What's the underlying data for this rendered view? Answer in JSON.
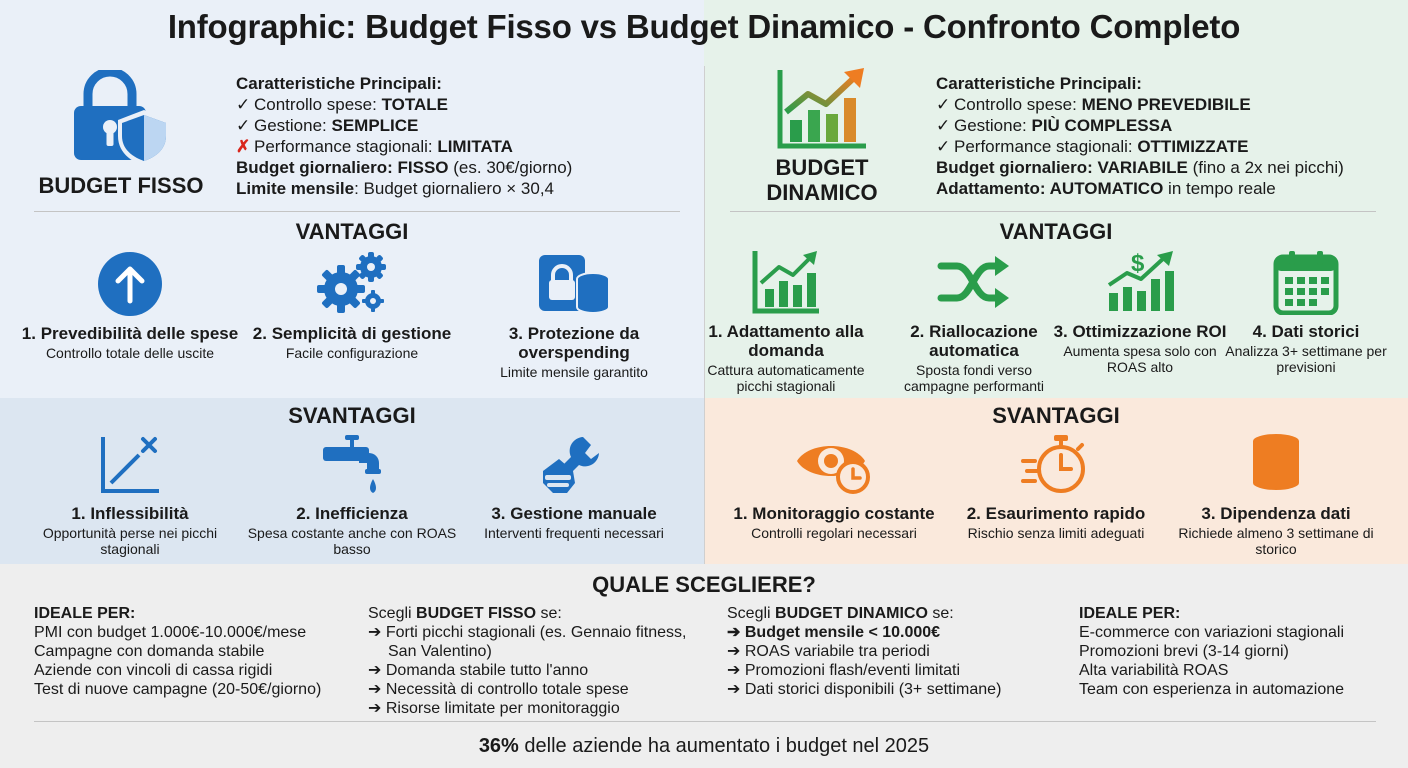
{
  "title": "Infographic: Budget Fisso vs Budget Dinamico - Confronto Completo",
  "colors": {
    "blue": "#1f6fc0",
    "green": "#2a9d4b",
    "orange": "#ee7d22",
    "red": "#d9261c"
  },
  "fisso": {
    "label": "BUDGET FISSO",
    "icon": "lock-shield-icon",
    "features_head": "Caratteristiche Principali:",
    "features": [
      {
        "mark": "✓",
        "label": "Controllo spese: ",
        "value": "TOTALE"
      },
      {
        "mark": "✓",
        "label": "Gestione: ",
        "value": "SEMPLICE"
      },
      {
        "mark": "✗",
        "label": "Performance stagionali: ",
        "value": "LIMITATA"
      }
    ],
    "daily_label": "Budget giornaliero",
    "daily_value": ": FISSO",
    "daily_note": " (es. 30€/giorno)",
    "monthly_label": "Limite mensile",
    "monthly_value": ": Budget giornaliero × 30,4",
    "vantaggi_title": "VANTAGGI",
    "vantaggi": [
      {
        "icon": "arrow-up-circle-icon",
        "title": "1. Prevedibilità delle spese",
        "desc": "Controllo totale delle uscite"
      },
      {
        "icon": "gears-icon",
        "title": "2. Semplicità di gestione",
        "desc": "Facile configurazione"
      },
      {
        "icon": "lock-database-icon",
        "title": "3. Protezione da overspending",
        "desc": "Limite mensile garantito"
      }
    ],
    "svantaggi_title": "SVANTAGGI",
    "svantaggi": [
      {
        "icon": "chart-x-icon",
        "title": "1. Inflessibilità",
        "desc": "Opportunità perse nei picchi stagionali"
      },
      {
        "icon": "faucet-icon",
        "title": "2. Inefficienza",
        "desc": "Spesa costante anche con ROAS basso"
      },
      {
        "icon": "hand-wrench-icon",
        "title": "3. Gestione manuale",
        "desc": "Interventi frequenti necessari"
      }
    ]
  },
  "dinamico": {
    "label_line1": "BUDGET",
    "label_line2": "DINAMICO",
    "icon": "growth-chart-icon",
    "features_head": "Caratteristiche Principali:",
    "features": [
      {
        "mark": "✓",
        "label": "Controllo spese: ",
        "value": "MENO PREVEDIBILE"
      },
      {
        "mark": "✓",
        "label": "Gestione: ",
        "value": "PIÙ COMPLESSA"
      },
      {
        "mark": "✓",
        "label": "Performance stagionali: ",
        "value": "OTTIMIZZATE"
      }
    ],
    "daily_label": "Budget giornaliero",
    "daily_value": ": VARIABILE",
    "daily_note": " (fino a 2x nei picchi)",
    "adapt_label": "Adattamento",
    "adapt_value": ": AUTOMATICO",
    "adapt_note": " in tempo reale",
    "vantaggi_title": "VANTAGGI",
    "vantaggi": [
      {
        "icon": "bar-growth-icon",
        "title": "1. Adattamento alla domanda",
        "desc": "Cattura automaticamente picchi stagionali"
      },
      {
        "icon": "shuffle-icon",
        "title": "2. Riallocazione automatica",
        "desc": "Sposta fondi verso campagne performanti"
      },
      {
        "icon": "dollar-growth-icon",
        "title": "3. Ottimizzazione ROI",
        "desc": "Aumenta spesa solo con ROAS alto"
      },
      {
        "icon": "calendar-icon",
        "title": "4. Dati storici",
        "desc": "Analizza 3+ settimane per previsioni"
      }
    ],
    "svantaggi_title": "SVANTAGGI",
    "svantaggi": [
      {
        "icon": "eye-clock-icon",
        "title": "1. Monitoraggio costante",
        "desc": "Controlli regolari necessari"
      },
      {
        "icon": "stopwatch-icon",
        "title": "2. Esaurimento rapido",
        "desc": "Rischio senza limiti adeguati"
      },
      {
        "icon": "database-icon",
        "title": "3. Dipendenza dati",
        "desc": "Richiede almeno 3 settimane di storico"
      }
    ]
  },
  "choose": {
    "title": "QUALE SCEGLIERE?",
    "ideal_fisso_head": "IDEALE PER:",
    "ideal_fisso": [
      "PMI con budget 1.000€-10.000€/mese",
      "Campagne con domanda stabile",
      "Aziende con vincoli di cassa rigidi",
      "Test di nuove campagne (20-50€/giorno)"
    ],
    "scegli_fisso_pre": "Scegli ",
    "scegli_fisso_bold": "BUDGET FISSO",
    "scegli_fisso_post": " se:",
    "scegli_fisso": [
      "Forti picchi stagionali (es. Gennaio fitness, San Valentino)",
      "Domanda stabile tutto l'anno",
      "Necessità di controllo totale spese",
      "Risorse limitate per monitoraggio"
    ],
    "scegli_dinamico_pre": "Scegli ",
    "scegli_dinamico_bold": "BUDGET DINAMICO",
    "scegli_dinamico_post": " se:",
    "scegli_dinamico": [
      "Budget mensile < 10.000€",
      "ROAS variabile tra periodi",
      "Promozioni flash/eventi limitati",
      "Dati storici disponibili (3+ settimane)"
    ],
    "ideal_dinamico_head": "IDEALE PER:",
    "ideal_dinamico": [
      "E-commerce con variazioni stagionali",
      "Promozioni brevi (3-14 giorni)",
      "Alta variabilità ROAS",
      "Team con esperienza in automazione"
    ],
    "arrow": "➔"
  },
  "footer": {
    "stat": "36%",
    "text": " delle aziende ha aumentato i budget nel 2025"
  }
}
